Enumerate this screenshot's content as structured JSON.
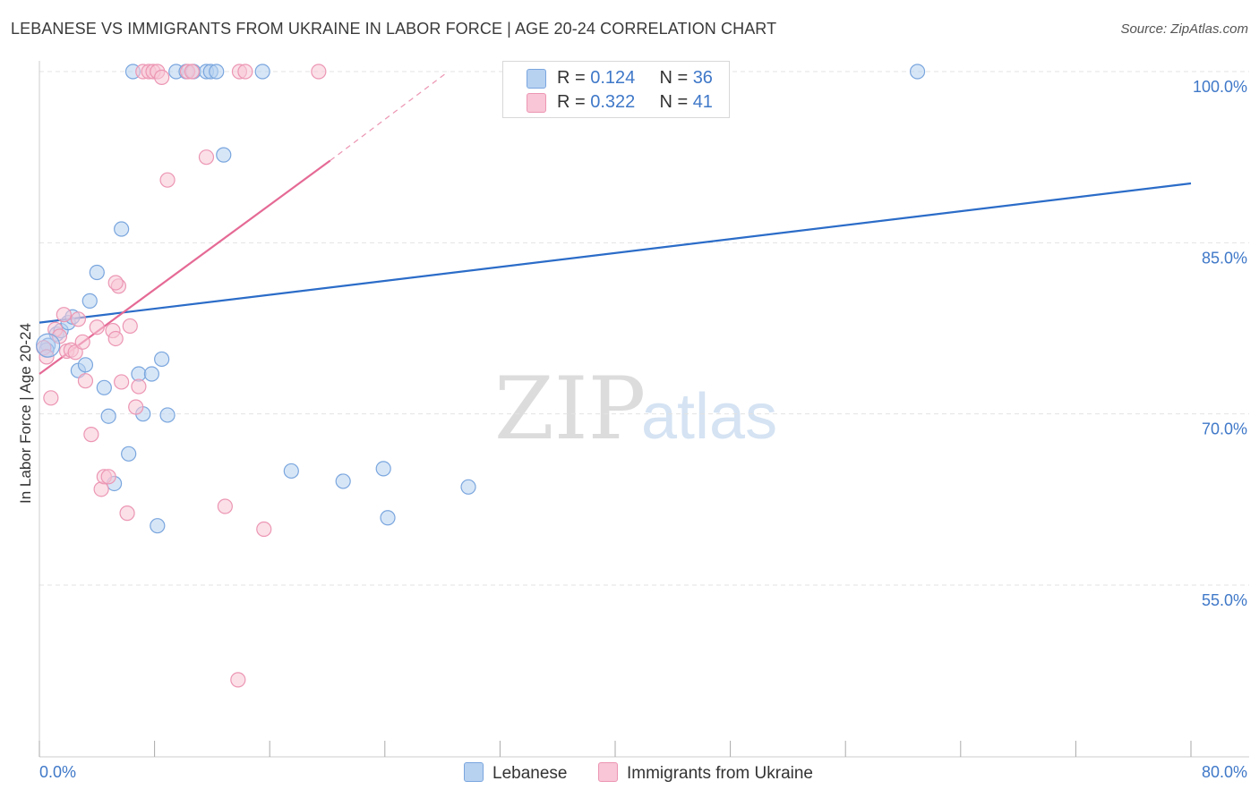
{
  "header": {
    "title": "LEBANESE VS IMMIGRANTS FROM UKRAINE IN LABOR FORCE | AGE 20-24 CORRELATION CHART",
    "source": "Source: ZipAtlas.com"
  },
  "watermark": {
    "zip": "ZIP",
    "atlas": "atlas"
  },
  "legend": {
    "rows": [
      {
        "r_label": "R = ",
        "r_value": "0.124",
        "n_label": "N = ",
        "n_value": "36"
      },
      {
        "r_label": "R = ",
        "r_value": "0.322",
        "n_label": "N = ",
        "n_value": "41"
      }
    ]
  },
  "colors": {
    "lebanese_fill": "#b7d1f1",
    "lebanese_stroke": "#7aa6de",
    "lebanese_line": "#2b6cc8",
    "ukraine_fill": "#f8c6d6",
    "ukraine_stroke": "#ec96b3",
    "ukraine_line": "#e56a95",
    "tick_label": "#3f78c8",
    "grid": "#e3e3e3"
  },
  "chart_data": {
    "type": "scatter",
    "title": "LEBANESE VS IMMIGRANTS FROM UKRAINE IN LABOR FORCE | AGE 20-24 CORRELATION CHART",
    "xlabel": "",
    "ylabel": "In Labor Force | Age 20-24",
    "xlim": [
      0,
      80
    ],
    "ylim": [
      40,
      101
    ],
    "x_tick_labels": [
      "0.0%",
      "80.0%"
    ],
    "y_ticks": [
      55,
      70,
      85,
      100
    ],
    "y_tick_labels": [
      "55.0%",
      "70.0%",
      "85.0%",
      "100.0%"
    ],
    "grid": true,
    "legend_position": "bottom-center",
    "series": [
      {
        "name": "Lebanese",
        "R": 0.124,
        "N": 36,
        "points": [
          [
            0.6,
            76.0
          ],
          [
            0.5,
            75.6
          ],
          [
            1.2,
            77.0
          ],
          [
            1.5,
            77.3
          ],
          [
            2.0,
            78.0
          ],
          [
            2.3,
            78.5
          ],
          [
            2.7,
            73.8
          ],
          [
            3.2,
            74.3
          ],
          [
            3.5,
            79.9
          ],
          [
            4.0,
            82.4
          ],
          [
            4.5,
            72.3
          ],
          [
            4.8,
            69.8
          ],
          [
            5.2,
            63.9
          ],
          [
            5.7,
            86.2
          ],
          [
            6.2,
            66.5
          ],
          [
            6.5,
            100.0
          ],
          [
            6.9,
            73.5
          ],
          [
            7.2,
            70.0
          ],
          [
            7.8,
            73.5
          ],
          [
            8.2,
            60.2
          ],
          [
            8.5,
            74.8
          ],
          [
            8.9,
            69.9
          ],
          [
            9.5,
            100.0
          ],
          [
            10.2,
            100.0
          ],
          [
            10.7,
            100.0
          ],
          [
            11.6,
            100.0
          ],
          [
            11.9,
            100.0
          ],
          [
            12.3,
            100.0
          ],
          [
            12.8,
            92.7
          ],
          [
            15.5,
            100.0
          ],
          [
            17.5,
            65.0
          ],
          [
            21.1,
            64.1
          ],
          [
            23.9,
            65.2
          ],
          [
            24.2,
            60.9
          ],
          [
            29.8,
            63.6
          ],
          [
            61.0,
            100.0
          ]
        ],
        "trend": {
          "x": [
            0,
            80
          ],
          "y": [
            78.0,
            90.2
          ]
        }
      },
      {
        "name": "Immigrants from Ukraine",
        "R": 0.322,
        "N": 41,
        "points": [
          [
            0.3,
            75.8
          ],
          [
            0.5,
            75.0
          ],
          [
            0.8,
            71.4
          ],
          [
            1.1,
            77.4
          ],
          [
            1.4,
            76.8
          ],
          [
            1.7,
            78.7
          ],
          [
            1.9,
            75.5
          ],
          [
            2.2,
            75.6
          ],
          [
            2.5,
            75.4
          ],
          [
            2.7,
            78.3
          ],
          [
            3.0,
            76.3
          ],
          [
            3.2,
            72.9
          ],
          [
            3.6,
            68.2
          ],
          [
            4.0,
            77.6
          ],
          [
            4.3,
            63.4
          ],
          [
            4.5,
            64.5
          ],
          [
            4.8,
            64.5
          ],
          [
            5.1,
            77.3
          ],
          [
            5.3,
            76.6
          ],
          [
            5.5,
            81.2
          ],
          [
            5.7,
            72.8
          ],
          [
            6.1,
            61.3
          ],
          [
            6.3,
            77.7
          ],
          [
            6.7,
            70.6
          ],
          [
            6.9,
            72.4
          ],
          [
            7.2,
            100.0
          ],
          [
            7.6,
            100.0
          ],
          [
            7.9,
            100.0
          ],
          [
            8.2,
            100.0
          ],
          [
            8.5,
            99.5
          ],
          [
            8.9,
            90.5
          ],
          [
            10.3,
            100.0
          ],
          [
            10.6,
            100.0
          ],
          [
            11.6,
            92.5
          ],
          [
            12.9,
            61.9
          ],
          [
            13.8,
            46.7
          ],
          [
            13.9,
            100.0
          ],
          [
            14.3,
            100.0
          ],
          [
            15.6,
            59.9
          ],
          [
            19.4,
            100.0
          ],
          [
            5.3,
            81.5
          ]
        ],
        "trend": {
          "x": [
            0,
            20.2
          ],
          "y": [
            73.5,
            92.2
          ]
        },
        "trend_extension": {
          "x": [
            20.2,
            28.4
          ],
          "y": [
            92.2,
            100.0
          ]
        }
      }
    ]
  },
  "bottom_legend": {
    "items": [
      "Lebanese",
      "Immigrants from Ukraine"
    ]
  }
}
